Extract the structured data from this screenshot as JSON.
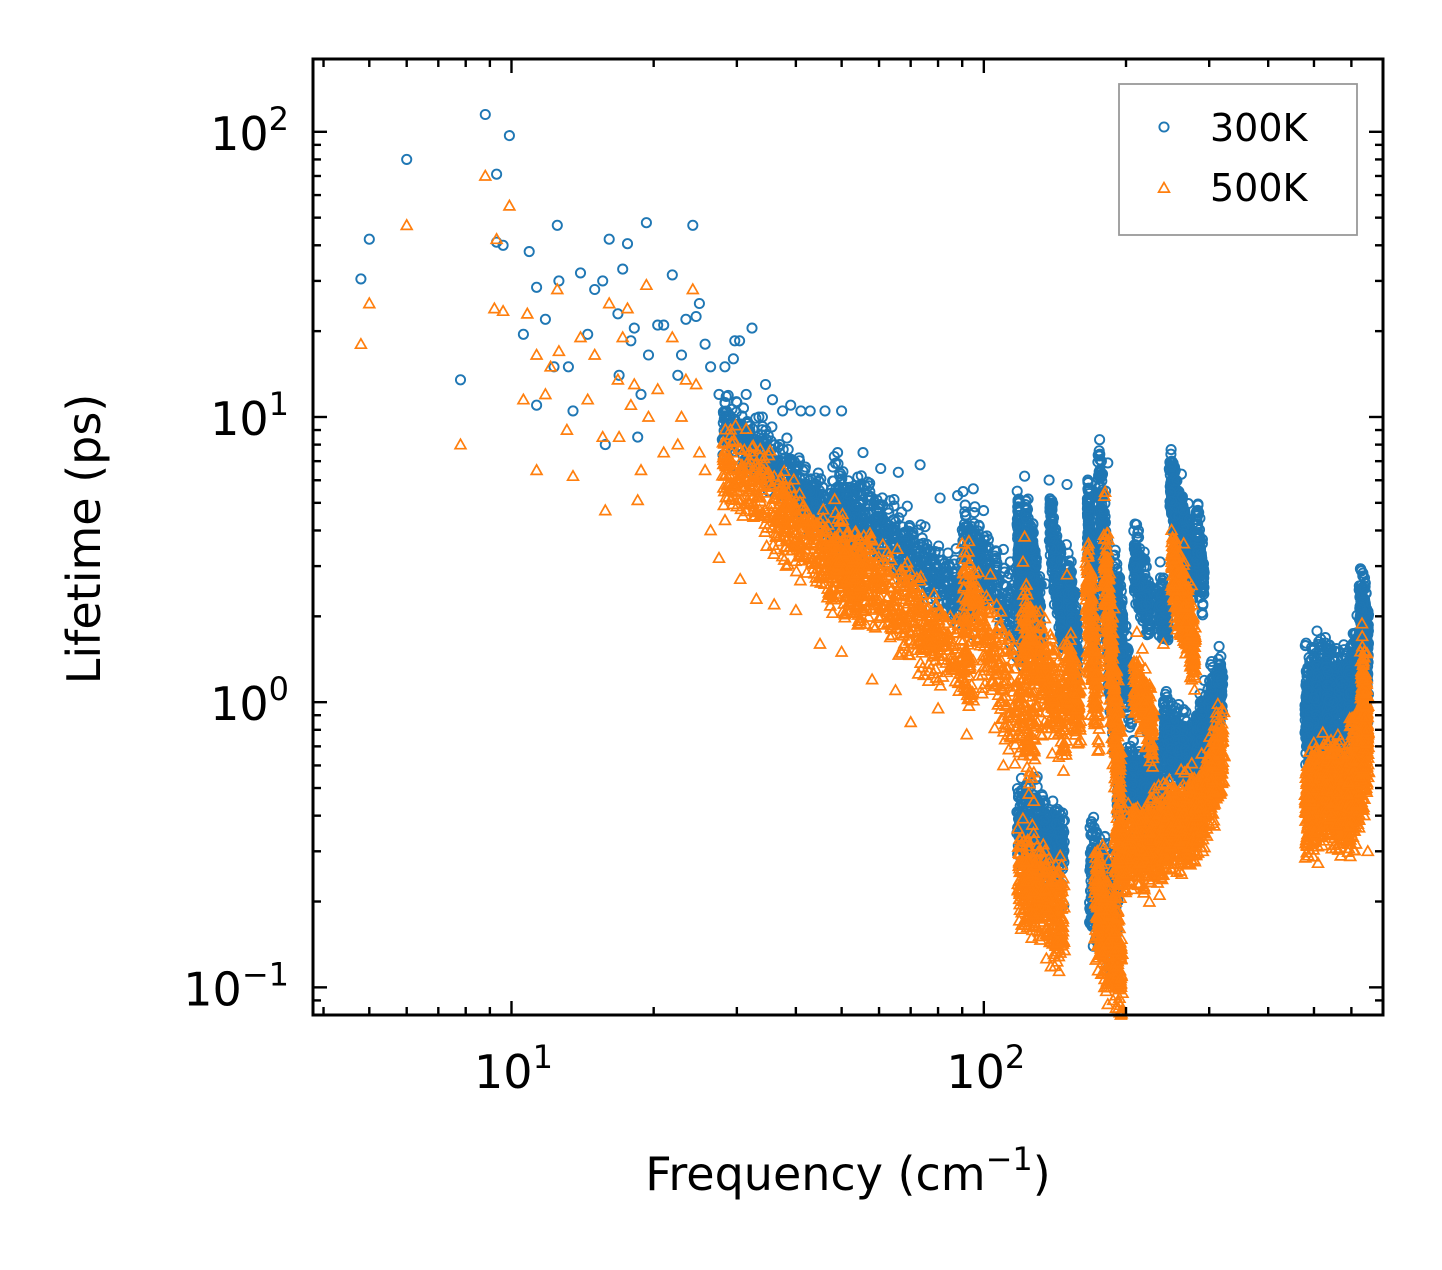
{
  "chart_data": {
    "type": "scatter",
    "xscale": "log",
    "yscale": "log",
    "xlim": [
      3.8,
      700
    ],
    "ylim": [
      0.08,
      180
    ],
    "xlabel": "Frequency (cm",
    "xlabel_exponent": "−1",
    "xlabel_close": ")",
    "ylabel": "Lifetime (ps)",
    "x_ticks": [
      {
        "value": 10,
        "base": "10",
        "exp": "1"
      },
      {
        "value": 100,
        "base": "10",
        "exp": "2"
      }
    ],
    "y_ticks": [
      {
        "value": 0.1,
        "base": "10",
        "exp": "−1"
      },
      {
        "value": 1,
        "base": "10",
        "exp": "0"
      },
      {
        "value": 10,
        "base": "10",
        "exp": "1"
      },
      {
        "value": 100,
        "base": "10",
        "exp": "2"
      }
    ],
    "legend_position": "top-right",
    "series": [
      {
        "name": "300K",
        "marker": "circle",
        "color": "#1f77b4",
        "points": [
          [
            4.8,
            30.5
          ],
          [
            5.0,
            42
          ],
          [
            6.0,
            80
          ],
          [
            7.8,
            13.5
          ],
          [
            8.8,
            115
          ],
          [
            9.3,
            71
          ],
          [
            9.3,
            41
          ],
          [
            9.6,
            40
          ],
          [
            9.9,
            97
          ],
          [
            10.6,
            19.5
          ],
          [
            10.9,
            38
          ],
          [
            11.3,
            11
          ],
          [
            11.3,
            28.5
          ],
          [
            11.8,
            22
          ],
          [
            12.3,
            15
          ],
          [
            12.5,
            47
          ],
          [
            12.6,
            30
          ],
          [
            13.2,
            15
          ],
          [
            13.5,
            10.5
          ],
          [
            14.0,
            32
          ],
          [
            14.5,
            19.5
          ],
          [
            15.0,
            28
          ],
          [
            15.6,
            30
          ],
          [
            15.8,
            8
          ],
          [
            16.1,
            42
          ],
          [
            16.8,
            23
          ],
          [
            16.9,
            14
          ],
          [
            17.2,
            33
          ],
          [
            17.6,
            40.5
          ],
          [
            17.9,
            18.5
          ],
          [
            18.2,
            20.5
          ],
          [
            18.5,
            8.5
          ],
          [
            18.8,
            12
          ],
          [
            19.3,
            48
          ],
          [
            19.5,
            16.5
          ],
          [
            20.4,
            21
          ],
          [
            21.0,
            21
          ],
          [
            21.9,
            31.5
          ],
          [
            22.5,
            14
          ],
          [
            22.9,
            16.5
          ],
          [
            23.4,
            22
          ],
          [
            24.2,
            47
          ],
          [
            24.6,
            22.5
          ],
          [
            25.0,
            25
          ],
          [
            25.7,
            18
          ],
          [
            26.4,
            15
          ],
          [
            27.5,
            12
          ],
          [
            28.3,
            15
          ],
          [
            29.5,
            16
          ],
          [
            29.7,
            18.5
          ],
          [
            30.4,
            18.5
          ],
          [
            31.4,
            12
          ],
          [
            32.3,
            20.5
          ],
          [
            33.4,
            10
          ],
          [
            34.5,
            13
          ],
          [
            35.7,
            11.5
          ],
          [
            37.5,
            10.5
          ],
          [
            39.0,
            11
          ],
          [
            41.0,
            10.5
          ],
          [
            42.9,
            10.5
          ],
          [
            46.1,
            10.5
          ],
          [
            50.0,
            10.5
          ],
          [
            55.5,
            7.5
          ],
          [
            60.5,
            6.6
          ],
          [
            65.9,
            6.4
          ],
          [
            73.3,
            6.8
          ],
          [
            80.8,
            5.2
          ],
          [
            88.0,
            5.3
          ],
          [
            95.0,
            5.6
          ],
          [
            104.0,
            2.6
          ],
          [
            111.0,
            1.9
          ],
          [
            121.0,
            0.3
          ],
          [
            122.0,
            6.2
          ],
          [
            135.0,
            2.6
          ],
          [
            140.0,
            0.45
          ],
          [
            150.0,
            5.8
          ],
          [
            165.0,
            1.5
          ],
          [
            180.0,
            0.2
          ],
          [
            183.0,
            6.9
          ],
          [
            200.0,
            0.45
          ],
          [
            220.0,
            0.5
          ],
          [
            248.0,
            0.8
          ],
          [
            262.0,
            6.3
          ],
          [
            290.0,
            0.9
          ],
          [
            318.0,
            1.2
          ],
          [
            492.0,
            0.7
          ],
          [
            550.0,
            1.0
          ],
          [
            600.0,
            0.9
          ],
          [
            640.0,
            2.5
          ],
          [
            650.0,
            0.85
          ]
        ],
        "bands": [
          [
            28,
            9.5,
            55,
            3.7,
            60,
            0.16
          ],
          [
            48,
            5.5,
            95,
            2.2,
            60,
            0.18
          ],
          [
            90,
            4.0,
            128,
            1.6,
            35,
            0.2
          ],
          [
            118,
            3.8,
            122,
            2.0,
            30,
            0.25
          ],
          [
            122,
            4.3,
            132,
            1.9,
            30,
            0.22
          ],
          [
            138,
            4.4,
            148,
            1.8,
            25,
            0.2
          ],
          [
            150,
            2.8,
            158,
            1.6,
            15,
            0.2
          ],
          [
            166,
            4.9,
            172,
            1.6,
            30,
            0.2
          ],
          [
            175,
            6.2,
            190,
            0.9,
            45,
            0.3
          ],
          [
            188,
            2.4,
            205,
            1.0,
            25,
            0.25
          ],
          [
            208,
            3.3,
            225,
            2.0,
            25,
            0.18
          ],
          [
            235,
            2.3,
            245,
            1.9,
            15,
            0.15
          ],
          [
            248,
            5.6,
            278,
            2.9,
            50,
            0.18
          ],
          [
            282,
            4.2,
            292,
            2.6,
            15,
            0.2
          ],
          [
            118,
            0.39,
            148,
            0.3,
            45,
            0.22
          ],
          [
            168,
            0.25,
            192,
            0.17,
            45,
            0.3
          ],
          [
            192,
            0.48,
            240,
            0.56,
            55,
            0.22
          ],
          [
            240,
            0.8,
            280,
            0.6,
            45,
            0.2
          ],
          [
            280,
            0.68,
            320,
            1.15,
            45,
            0.2
          ],
          [
            480,
            0.9,
            530,
            1.05,
            45,
            0.28
          ],
          [
            530,
            1.05,
            590,
            0.95,
            45,
            0.25
          ],
          [
            590,
            0.95,
            650,
            1.6,
            45,
            0.3
          ],
          [
            625,
            2.2,
            650,
            1.7,
            20,
            0.22
          ]
        ]
      },
      {
        "name": "500K",
        "marker": "triangle",
        "color": "#ff7f0e",
        "points": [
          [
            4.8,
            18
          ],
          [
            5.0,
            25
          ],
          [
            6.0,
            47
          ],
          [
            7.8,
            8
          ],
          [
            8.8,
            70
          ],
          [
            9.2,
            24
          ],
          [
            9.3,
            42
          ],
          [
            9.6,
            23.5
          ],
          [
            9.9,
            55
          ],
          [
            10.6,
            11.5
          ],
          [
            10.8,
            23
          ],
          [
            11.3,
            6.5
          ],
          [
            11.3,
            16.5
          ],
          [
            11.8,
            12
          ],
          [
            12.1,
            15
          ],
          [
            12.5,
            28
          ],
          [
            12.6,
            17
          ],
          [
            13.1,
            9
          ],
          [
            13.5,
            6.2
          ],
          [
            14.0,
            19
          ],
          [
            14.5,
            11.5
          ],
          [
            15.0,
            16.5
          ],
          [
            15.6,
            8.5
          ],
          [
            15.8,
            4.7
          ],
          [
            16.1,
            25
          ],
          [
            16.8,
            13.5
          ],
          [
            16.9,
            8.5
          ],
          [
            17.2,
            19
          ],
          [
            17.6,
            24
          ],
          [
            17.9,
            11
          ],
          [
            18.2,
            13
          ],
          [
            18.5,
            5.1
          ],
          [
            18.8,
            6.5
          ],
          [
            19.3,
            29
          ],
          [
            19.5,
            10
          ],
          [
            20.4,
            12.5
          ],
          [
            21.0,
            7.5
          ],
          [
            21.9,
            19
          ],
          [
            22.5,
            8
          ],
          [
            22.9,
            10
          ],
          [
            23.4,
            13.5
          ],
          [
            24.2,
            28
          ],
          [
            24.6,
            13
          ],
          [
            25.0,
            7.5
          ],
          [
            25.7,
            6.5
          ],
          [
            26.4,
            4
          ],
          [
            27.5,
            3.2
          ],
          [
            30.5,
            2.7
          ],
          [
            33.0,
            2.3
          ],
          [
            36.0,
            2.2
          ],
          [
            40.0,
            2.1
          ],
          [
            45.0,
            1.6
          ],
          [
            50.0,
            1.5
          ],
          [
            58.0,
            1.2
          ],
          [
            65.0,
            1.1
          ],
          [
            70.0,
            0.85
          ],
          [
            80.0,
            0.95
          ],
          [
            92.0,
            0.77
          ],
          [
            110.0,
            0.6
          ],
          [
            118.0,
            0.36
          ],
          [
            120.0,
            0.16
          ],
          [
            122.0,
            3.8
          ],
          [
            135.0,
            0.22
          ],
          [
            150.0,
            2.8
          ],
          [
            160.0,
            0.8
          ],
          [
            180.0,
            0.1
          ],
          [
            183.0,
            3.9
          ],
          [
            200.0,
            0.25
          ],
          [
            218.0,
            0.3
          ],
          [
            240.0,
            1.6
          ],
          [
            265.0,
            3.6
          ],
          [
            268.0,
            1.9
          ],
          [
            290.0,
            0.35
          ],
          [
            320.0,
            0.6
          ],
          [
            500.0,
            0.35
          ],
          [
            560.0,
            0.48
          ],
          [
            640.0,
            1.5
          ],
          [
            650.0,
            0.3
          ]
        ],
        "bands": [
          [
            28,
            7.0,
            55,
            2.5,
            60,
            0.22
          ],
          [
            48,
            3.5,
            95,
            1.3,
            60,
            0.24
          ],
          [
            90,
            2.6,
            128,
            0.7,
            35,
            0.28
          ],
          [
            118,
            0.25,
            148,
            0.18,
            45,
            0.25
          ],
          [
            120,
            1.8,
            150,
            0.9,
            35,
            0.3
          ],
          [
            150,
            1.3,
            160,
            0.9,
            15,
            0.25
          ],
          [
            165,
            2.4,
            175,
            1.0,
            25,
            0.3
          ],
          [
            172,
            0.2,
            196,
            0.12,
            40,
            0.3
          ],
          [
            180,
            3.2,
            195,
            0.5,
            35,
            0.35
          ],
          [
            190,
            0.3,
            240,
            0.33,
            55,
            0.22
          ],
          [
            208,
            1.2,
            228,
            0.8,
            20,
            0.2
          ],
          [
            240,
            0.36,
            280,
            0.4,
            45,
            0.22
          ],
          [
            250,
            3.0,
            280,
            1.5,
            45,
            0.2
          ],
          [
            280,
            0.38,
            322,
            0.7,
            45,
            0.22
          ],
          [
            480,
            0.42,
            530,
            0.5,
            45,
            0.25
          ],
          [
            530,
            0.5,
            590,
            0.46,
            45,
            0.25
          ],
          [
            590,
            0.46,
            652,
            0.7,
            45,
            0.3
          ],
          [
            630,
            1.2,
            650,
            0.8,
            20,
            0.25
          ]
        ]
      }
    ]
  }
}
